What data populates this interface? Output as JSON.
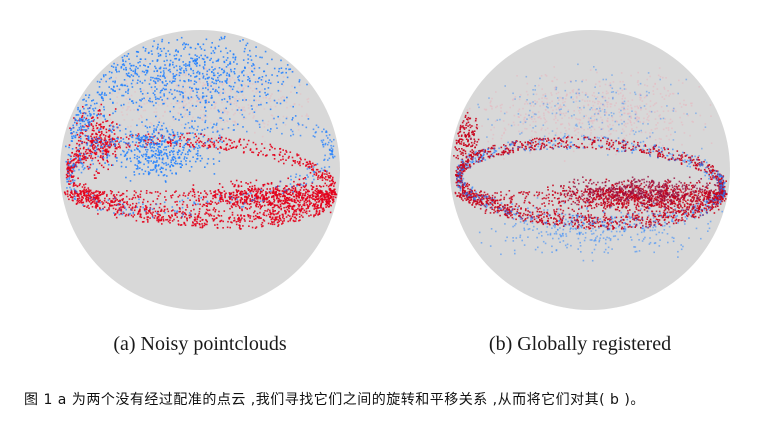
{
  "figure": {
    "panels": [
      {
        "id": "a",
        "caption": "(a) Noisy pointclouds",
        "colors": {
          "sphere": "#d8d8d8",
          "cloud_1": "#1f7fff",
          "cloud_2": "#e3001b"
        }
      },
      {
        "id": "b",
        "caption": "(b) Globally registered",
        "colors": {
          "sphere": "#d8d8d8",
          "cloud_1": "#1f7fff",
          "cloud_2": "#c8001a"
        }
      }
    ],
    "caption": "图  1 a 为两个没有经过配准的点云 ,我们寻找它们之间的旋转和平移关系 ,从而将它们对其( b )。"
  }
}
